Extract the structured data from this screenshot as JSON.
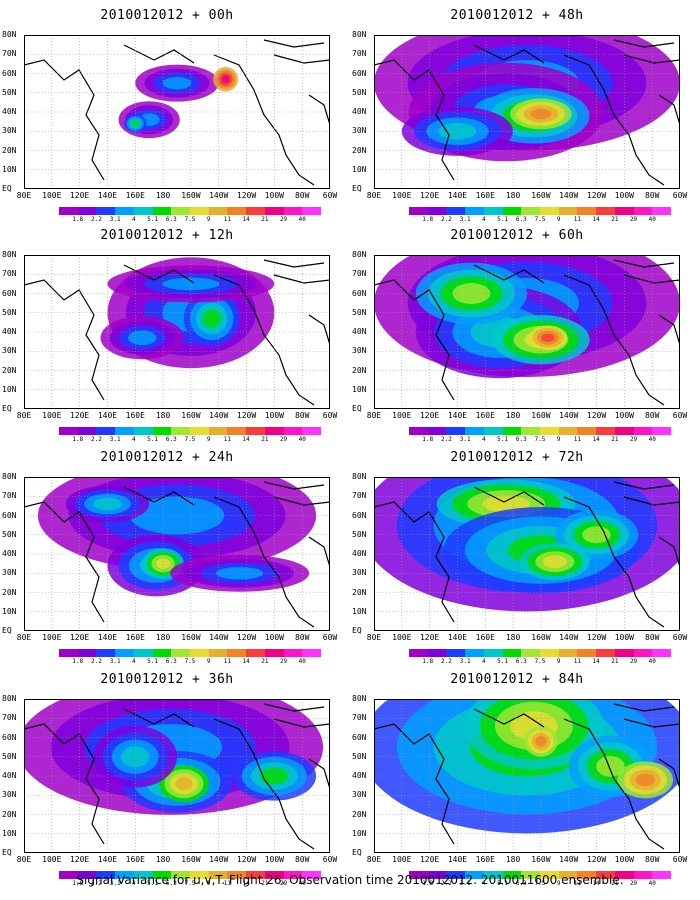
{
  "chart_data": [
    {
      "type": "heatmap",
      "title": "2010012012 + 00h"
    },
    {
      "type": "heatmap",
      "title": "2010012012 + 48h"
    },
    {
      "type": "heatmap",
      "title": "2010012012 + 12h"
    },
    {
      "type": "heatmap",
      "title": "2010012012 + 60h"
    },
    {
      "type": "heatmap",
      "title": "2010012012 + 24h"
    },
    {
      "type": "heatmap",
      "title": "2010012012 + 72h"
    },
    {
      "type": "heatmap",
      "title": "2010012012 + 36h"
    },
    {
      "type": "heatmap",
      "title": "2010012012 + 84h"
    }
  ],
  "lat_ticks": [
    "80N",
    "70N",
    "60N",
    "50N",
    "40N",
    "30N",
    "20N",
    "10N",
    "EQ"
  ],
  "lon_ticks": [
    "80E",
    "100E",
    "120E",
    "140E",
    "160E",
    "180",
    "160W",
    "140W",
    "120W",
    "100W",
    "80W",
    "60W"
  ],
  "colorbar": {
    "labels": [
      "1.8",
      "2.2",
      "3.1",
      "4",
      "5.1",
      "6.3",
      "7.5",
      "9",
      "11",
      "14",
      "21",
      "29",
      "40"
    ],
    "colors": [
      "#a000c8",
      "#7f00dc",
      "#1e3cff",
      "#00a0ff",
      "#00c8c8",
      "#00dc00",
      "#a0e632",
      "#e6dc32",
      "#e6af2d",
      "#f08228",
      "#fa3c3c",
      "#f00082",
      "#ff14c8",
      "#ff32ff"
    ]
  },
  "footer": "Signal Variance for u,v,T. Flight 26. Observation time 2010012012. 2010011600 ensemble."
}
